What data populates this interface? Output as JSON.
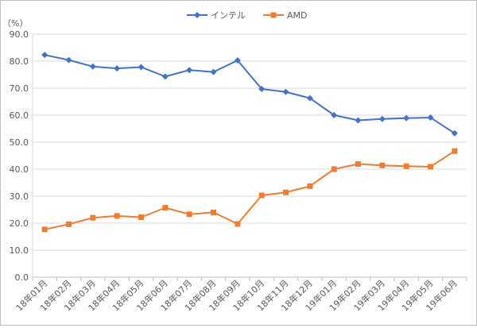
{
  "chart_data": {
    "type": "line",
    "y_unit_label": "（%）",
    "categories": [
      "18年01月",
      "18年02月",
      "18年03月",
      "18年04月",
      "18年05月",
      "18年06月",
      "18年07月",
      "18年08月",
      "18年09月",
      "18年10月",
      "18年11月",
      "18年12月",
      "19年01月",
      "19年02月",
      "19年03月",
      "19年04月",
      "19年05月",
      "19年06月"
    ],
    "ylim": [
      0,
      90
    ],
    "y_ticks": [
      "0.0",
      "10.0",
      "20.0",
      "30.0",
      "40.0",
      "50.0",
      "60.0",
      "70.0",
      "80.0",
      "90.0"
    ],
    "grid": true,
    "legend_position": "top-center",
    "series": [
      {
        "name": "インテル",
        "color": "#4472c4",
        "marker": "diamond",
        "values": [
          82.3,
          80.4,
          78.0,
          77.3,
          77.8,
          74.3,
          76.7,
          76.0,
          80.3,
          69.7,
          68.6,
          66.3,
          60.0,
          58.1,
          58.6,
          58.9,
          59.1,
          53.3
        ]
      },
      {
        "name": "AMD",
        "color": "#ed7d31",
        "marker": "square",
        "values": [
          17.7,
          19.6,
          22.0,
          22.7,
          22.2,
          25.7,
          23.3,
          24.0,
          19.7,
          30.3,
          31.4,
          33.7,
          40.0,
          41.9,
          41.4,
          41.1,
          40.9,
          46.7
        ]
      }
    ]
  }
}
